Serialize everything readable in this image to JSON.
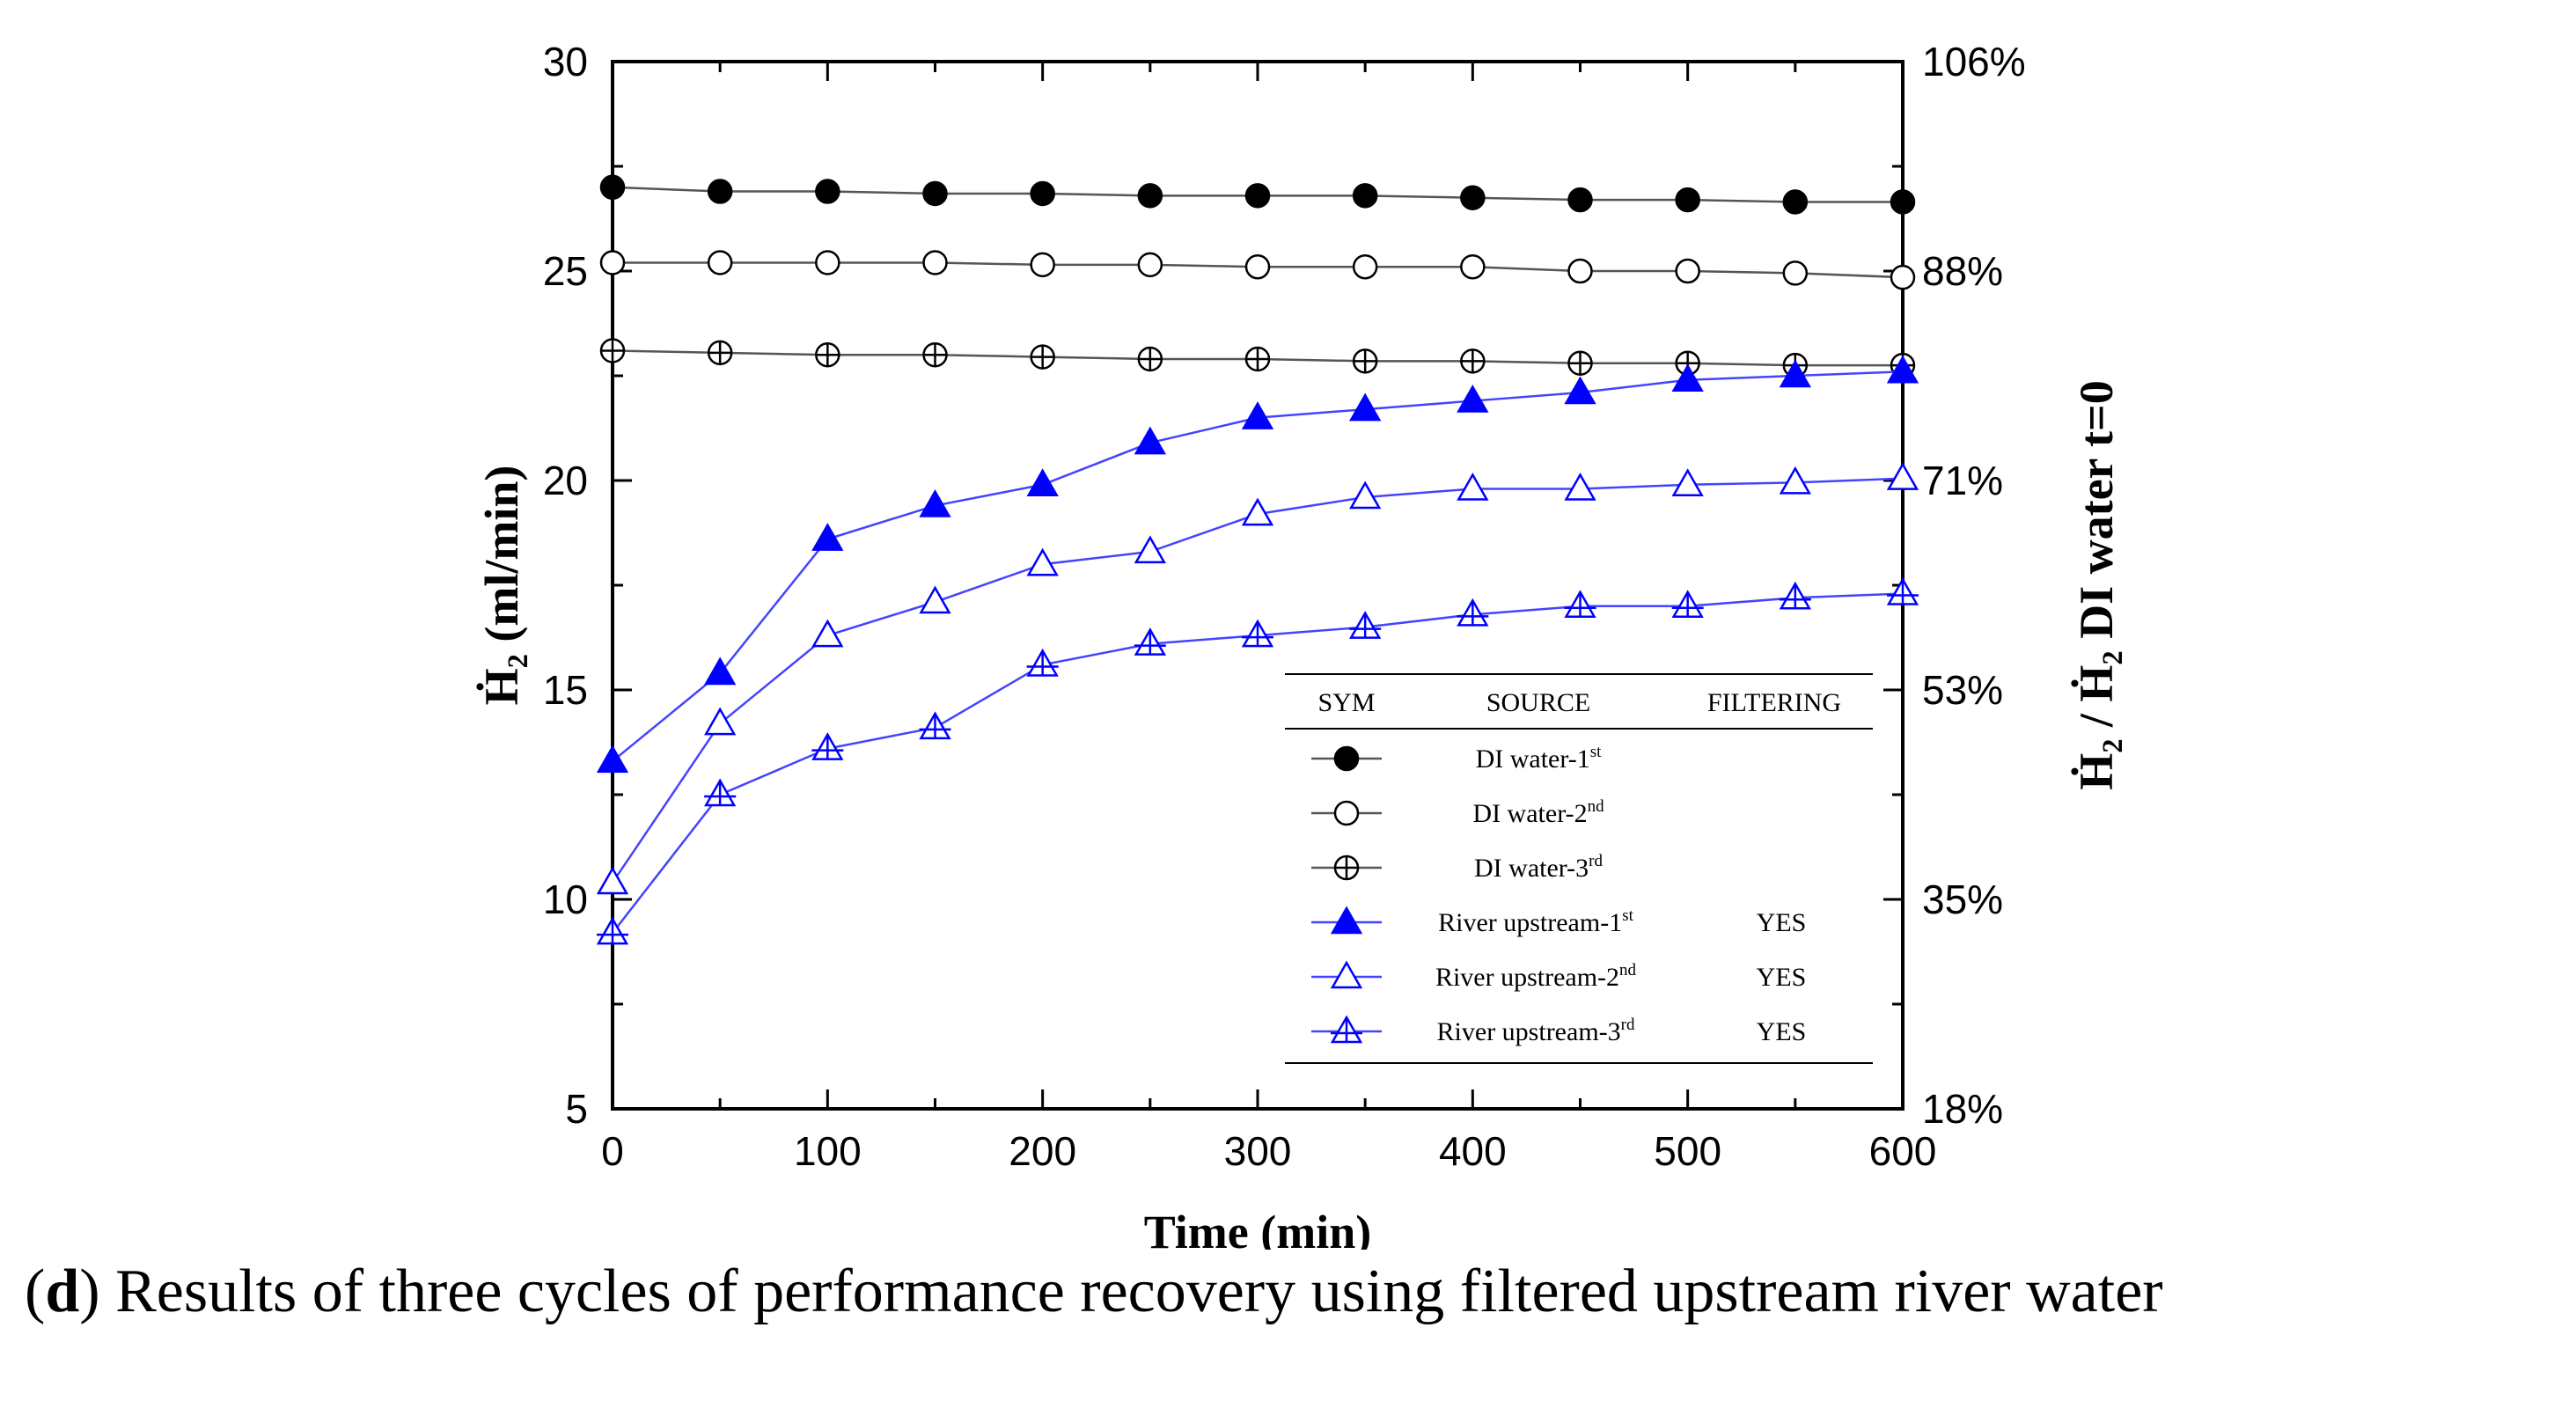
{
  "caption": {
    "letter": "d",
    "text": "Results of three cycles of performance recovery using filtered upstream river water"
  },
  "colors": {
    "black": "#000000",
    "blue": "#0000ff",
    "line_gray": "#555555",
    "line_blue": "#4444ff"
  },
  "chart_data": {
    "type": "line",
    "xlabel": "Time (min)",
    "ylabel": "Ḣ₂ (ml/min)",
    "y2label": "Ḣ₂ / Ḣ₂ DI water t=0",
    "xlim": [
      0,
      600
    ],
    "ylim": [
      5,
      30
    ],
    "x_ticks": [
      "0",
      "100",
      "200",
      "300",
      "400",
      "500",
      "600"
    ],
    "y_ticks": [
      "5",
      "10",
      "15",
      "20",
      "25",
      "30"
    ],
    "y2_ticks": [
      "18%",
      "35%",
      "53%",
      "71%",
      "88%",
      "106%"
    ],
    "x": [
      0,
      50,
      100,
      150,
      200,
      250,
      300,
      350,
      400,
      450,
      500,
      550,
      600
    ],
    "series": [
      {
        "name": "DI water-1st",
        "marker": "filled-circle",
        "color": "#000000",
        "values": [
          27.0,
          26.9,
          26.9,
          26.85,
          26.85,
          26.8,
          26.8,
          26.8,
          26.75,
          26.7,
          26.7,
          26.65,
          26.65
        ]
      },
      {
        "name": "DI water-2nd",
        "marker": "open-circle",
        "color": "#000000",
        "values": [
          25.2,
          25.2,
          25.2,
          25.2,
          25.15,
          25.15,
          25.1,
          25.1,
          25.1,
          25.0,
          25.0,
          24.95,
          24.85
        ]
      },
      {
        "name": "DI water-3rd",
        "marker": "crossed-circle",
        "color": "#000000",
        "values": [
          23.1,
          23.05,
          23.0,
          23.0,
          22.95,
          22.9,
          22.9,
          22.85,
          22.85,
          22.8,
          22.8,
          22.75,
          22.75
        ]
      },
      {
        "name": "River upstream-1st",
        "marker": "filled-triangle",
        "color": "#0000ff",
        "values": [
          13.3,
          15.4,
          18.6,
          19.4,
          19.9,
          20.9,
          21.5,
          21.7,
          21.9,
          22.1,
          22.4,
          22.5,
          22.6
        ]
      },
      {
        "name": "River upstream-2nd",
        "marker": "open-triangle",
        "color": "#0000ff",
        "values": [
          10.4,
          14.2,
          16.3,
          17.1,
          18.0,
          18.3,
          19.2,
          19.6,
          19.8,
          19.8,
          19.9,
          19.95,
          20.05
        ]
      },
      {
        "name": "River upstream-3rd",
        "marker": "crossed-triangle",
        "color": "#0000ff",
        "values": [
          9.2,
          12.5,
          13.6,
          14.1,
          15.6,
          16.1,
          16.3,
          16.5,
          16.8,
          17.0,
          17.0,
          17.2,
          17.3
        ]
      }
    ],
    "legend": {
      "headers": [
        "SYM",
        "SOURCE",
        "FILTERING"
      ],
      "rows": [
        {
          "base": "DI water-",
          "sup": "st",
          "ord": "1",
          "filtering": ""
        },
        {
          "base": "DI water-",
          "sup": "nd",
          "ord": "2",
          "filtering": ""
        },
        {
          "base": "DI water-",
          "sup": "rd",
          "ord": "3",
          "filtering": ""
        },
        {
          "base": "River upstream-",
          "sup": "st",
          "ord": "1",
          "filtering": "YES"
        },
        {
          "base": "River upstream-",
          "sup": "nd",
          "ord": "2",
          "filtering": "YES"
        },
        {
          "base": "River upstream-",
          "sup": "rd",
          "ord": "3",
          "filtering": "YES"
        }
      ],
      "placement": "lower-right"
    }
  }
}
